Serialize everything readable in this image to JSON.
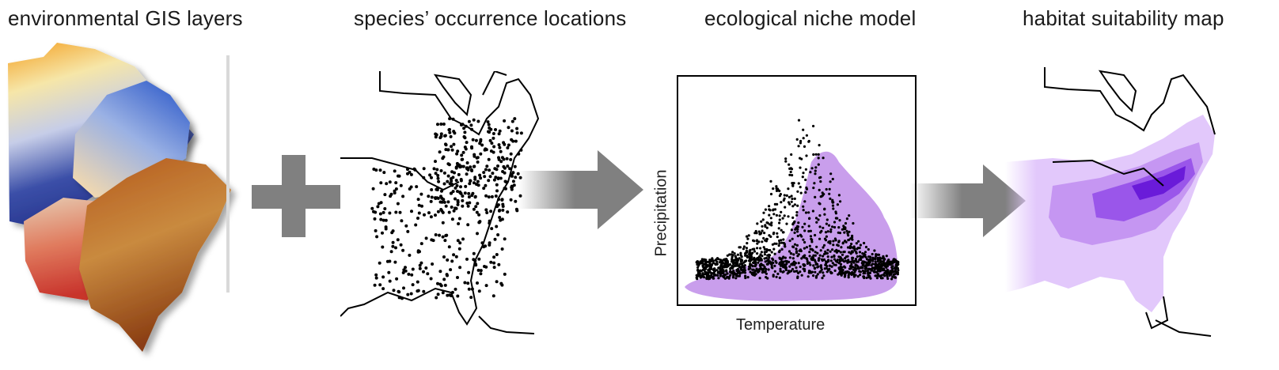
{
  "steps": [
    {
      "title": "environmental GIS layers"
    },
    {
      "title": "species’ occurrence locations"
    },
    {
      "title": "ecological niche model"
    },
    {
      "title": "habitat suitability map"
    }
  ],
  "niche_plot": {
    "xlabel": "Temperature",
    "ylabel": "Precipitation"
  },
  "colors": {
    "operator_gray": "#808080",
    "niche_purple": "#b77ee6",
    "suitability_light": "#e2c8fb",
    "suitability_dark": "#6a1bd9",
    "occurrence_points": "#000000"
  }
}
